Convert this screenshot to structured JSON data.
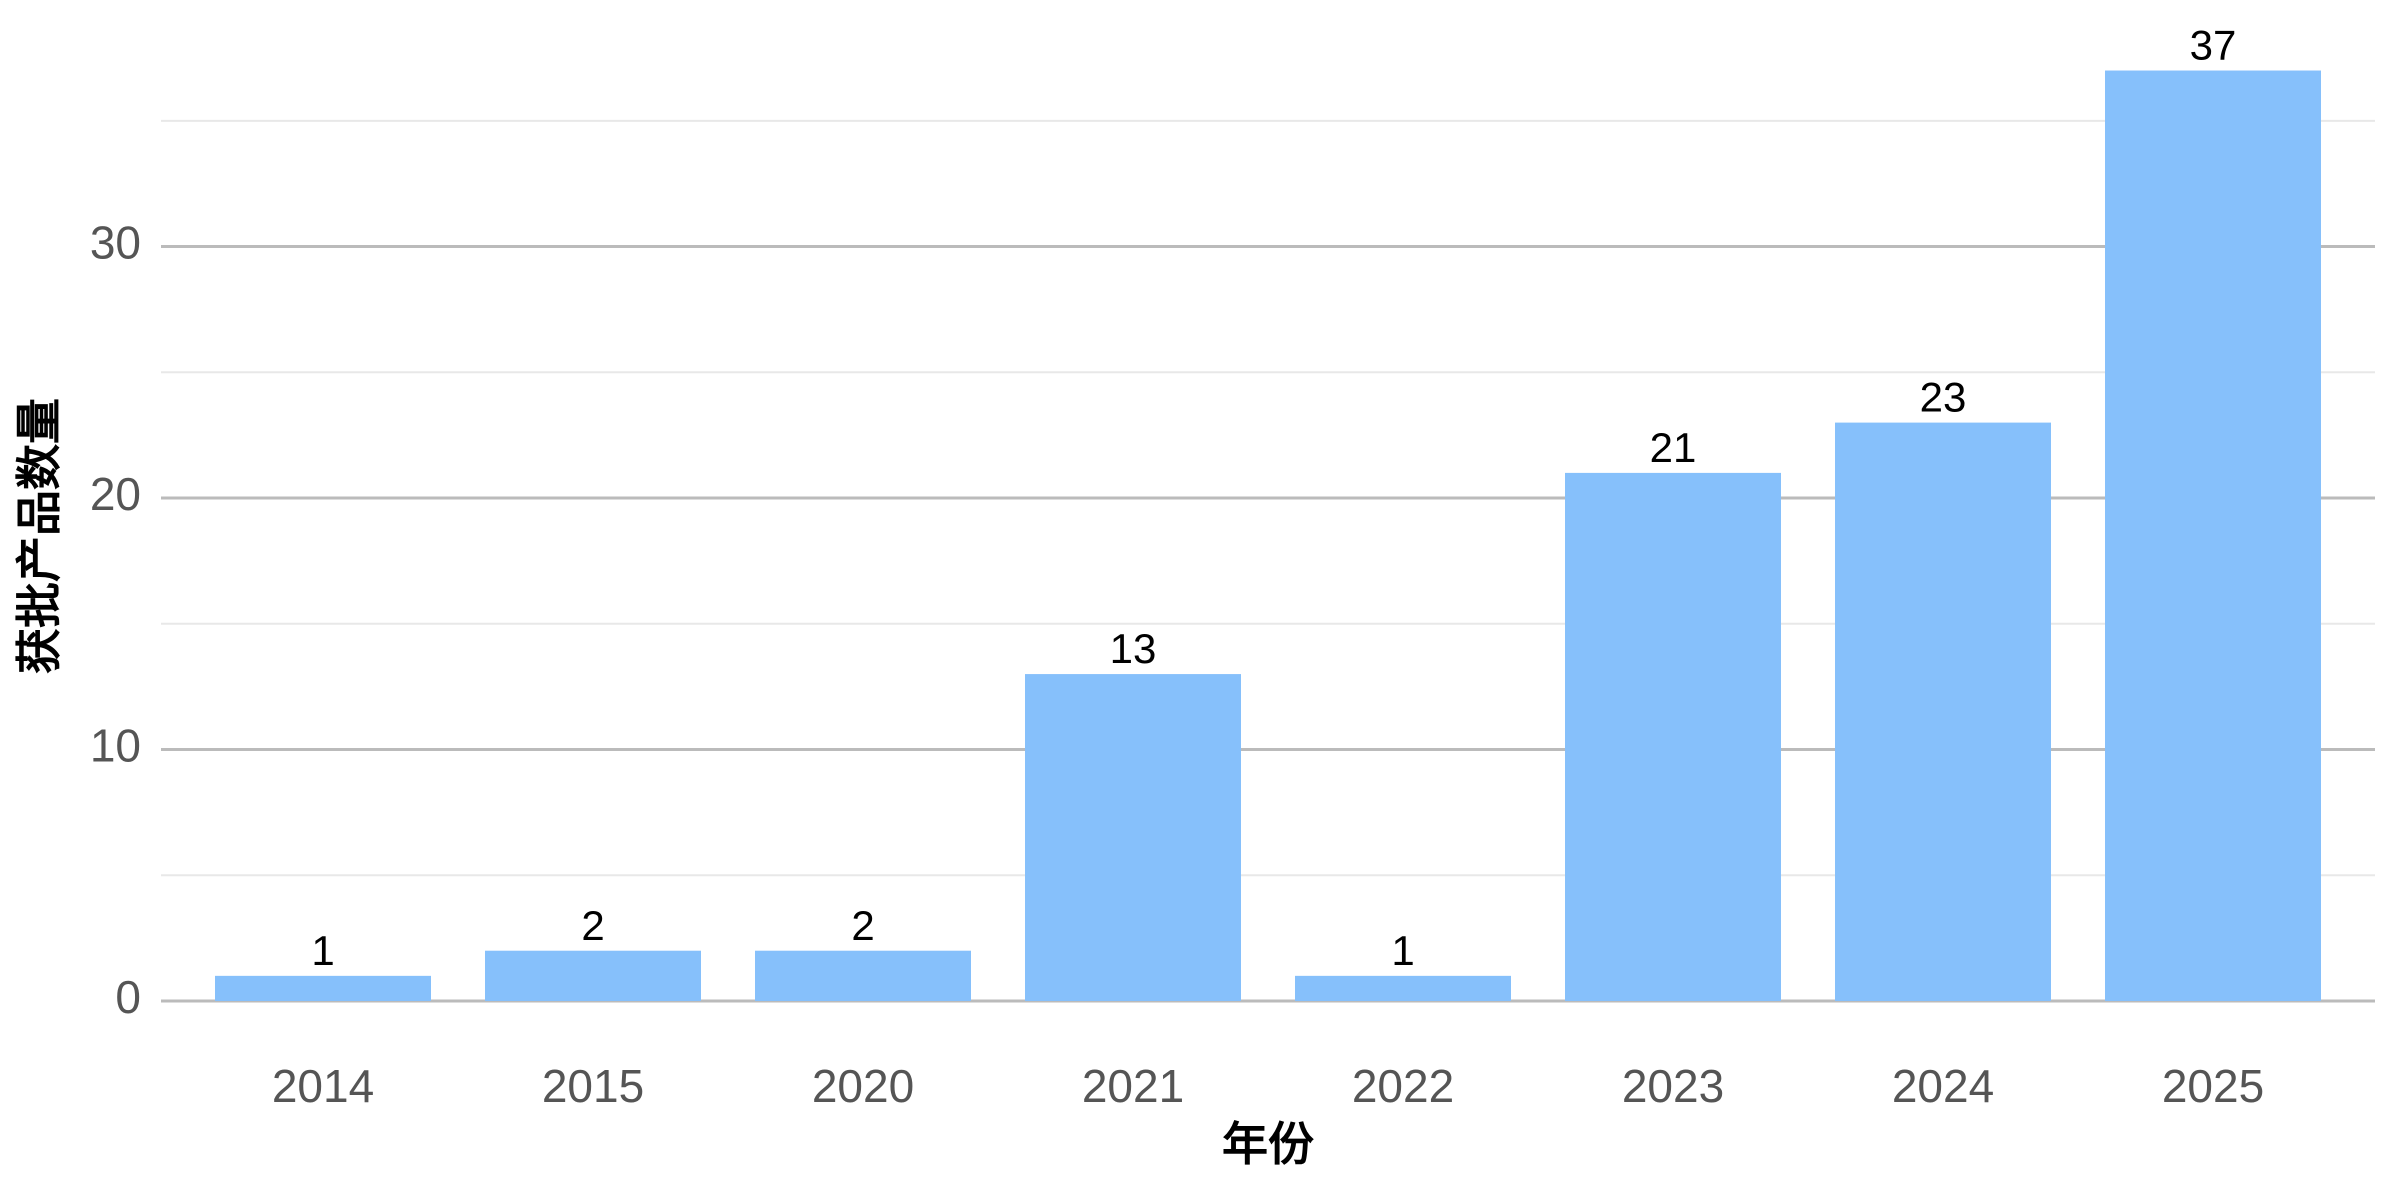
{
  "chart_data": {
    "type": "bar",
    "x_label": "年份",
    "y_label": "获批产品数量",
    "categories": [
      "2014",
      "2015",
      "2020",
      "2021",
      "2022",
      "2023",
      "2024",
      "2025"
    ],
    "values": [
      1,
      2,
      2,
      13,
      1,
      21,
      23,
      37
    ],
    "color": "#86c0fb",
    "ylim": [
      0,
      38.85
    ],
    "yticks": [
      0,
      10,
      20,
      30
    ],
    "minor_yticks": [
      5,
      15,
      25,
      35
    ],
    "grid": true
  }
}
